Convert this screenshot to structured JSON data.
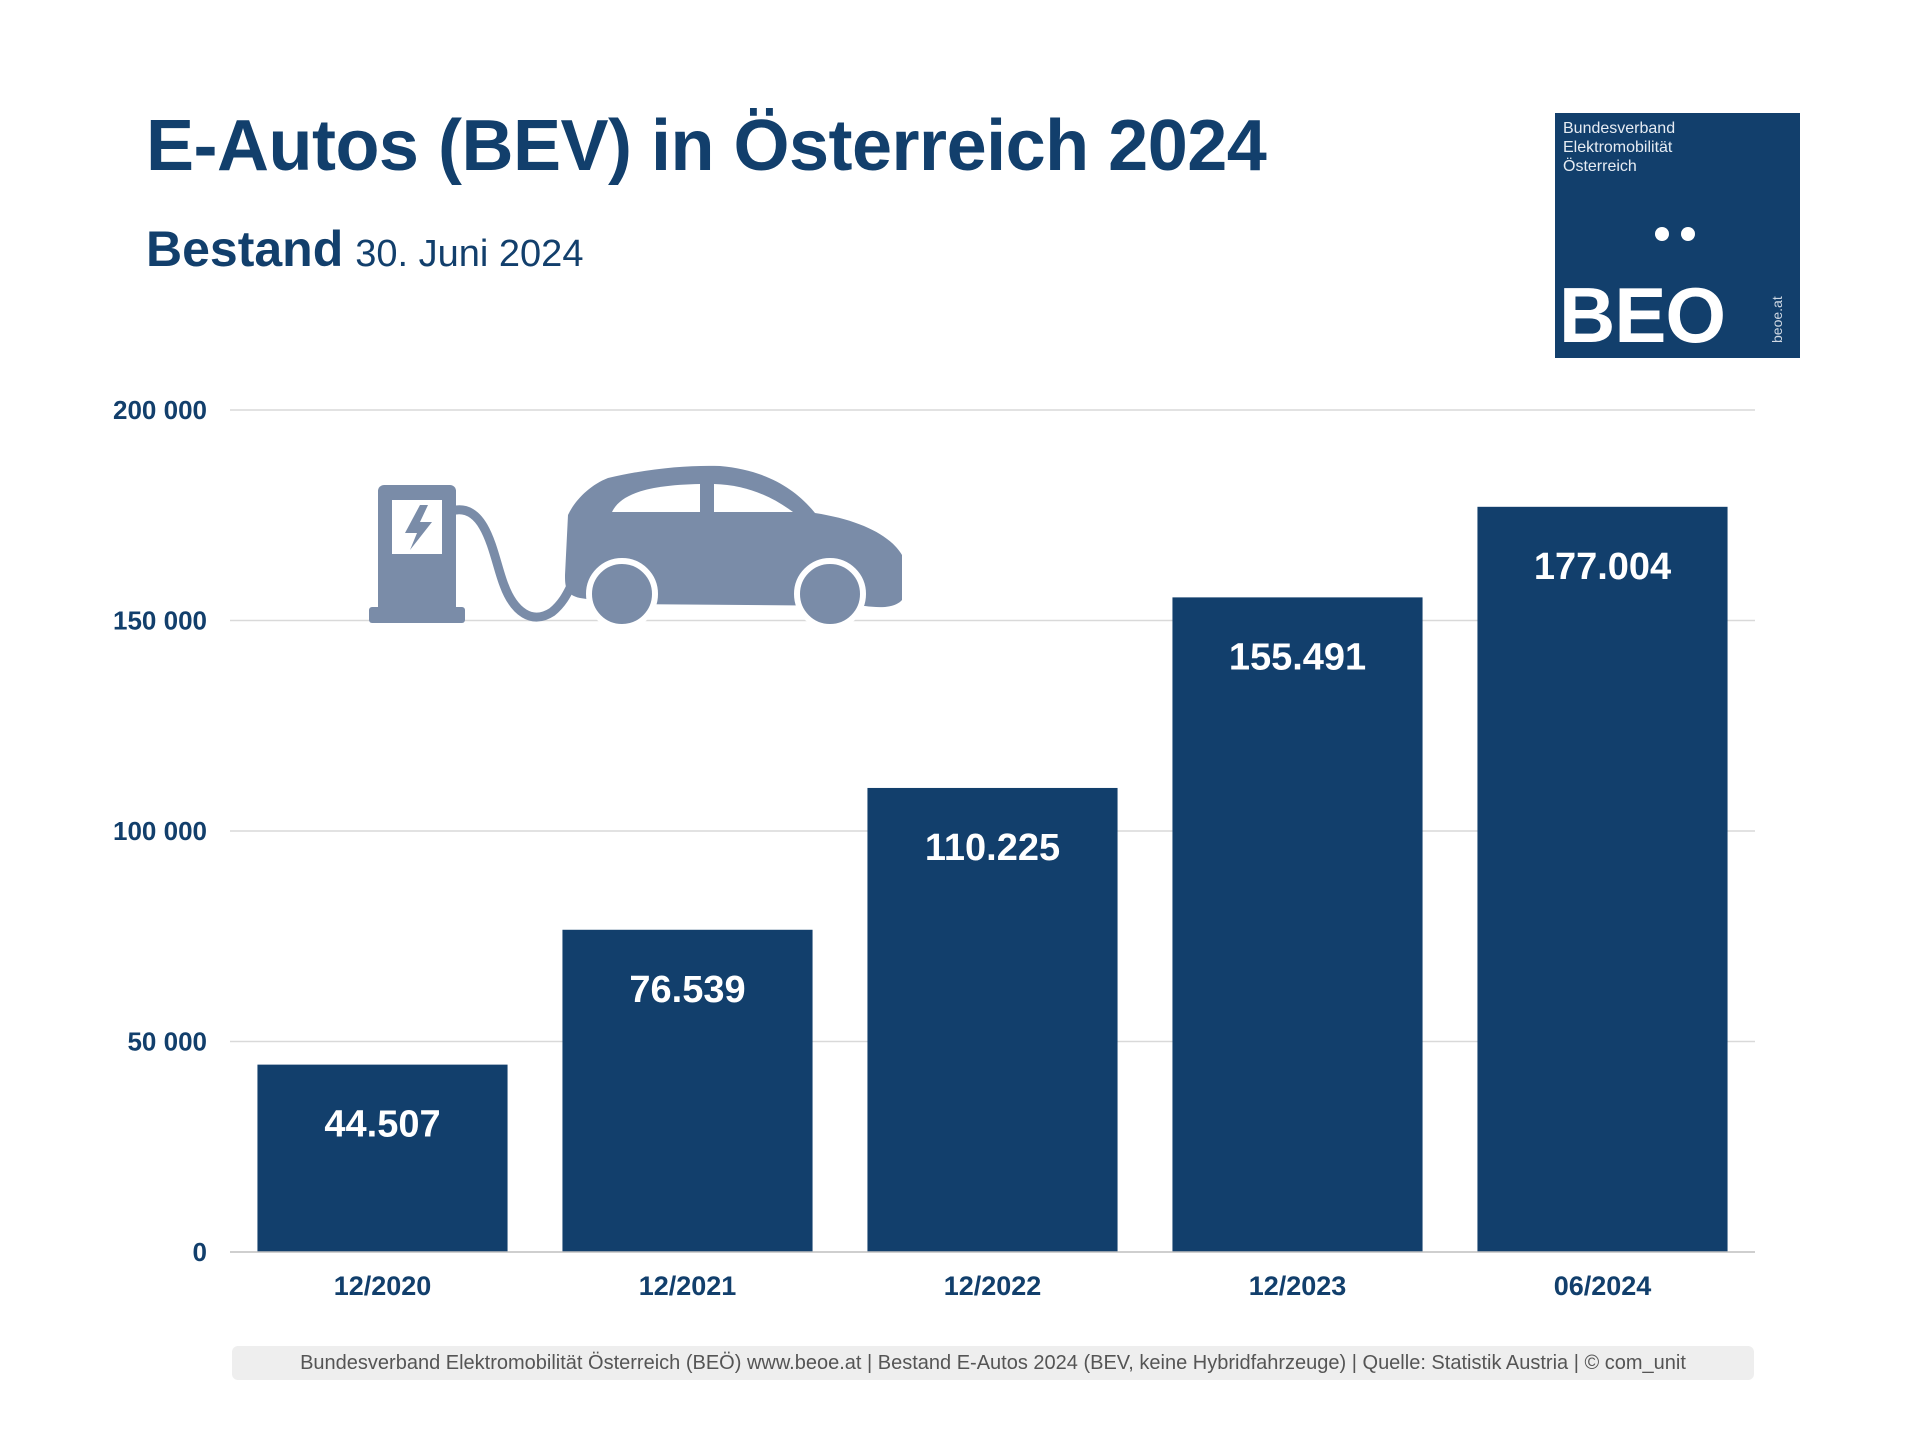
{
  "header": {
    "title": "E-Autos (BEV) in Österreich 2024",
    "subtitle_bold": "Bestand",
    "subtitle_date": "30. Juni 2024"
  },
  "logo": {
    "org_lines": [
      "Bundesverband",
      "Elektromobilität",
      "Österreich"
    ],
    "wordmark": "BEO",
    "url": "beoe.at",
    "color": "#123f6c"
  },
  "illustration": {
    "icons": [
      "charging-station-icon",
      "electric-car-icon"
    ],
    "color": "#7a8ca8"
  },
  "chart_data": {
    "type": "bar",
    "categories": [
      "12/2020",
      "12/2021",
      "12/2022",
      "12/2023",
      "06/2024"
    ],
    "values": [
      44507,
      76539,
      110225,
      155491,
      177004
    ],
    "value_labels": [
      "44.507",
      "76.539",
      "110.225",
      "155.491",
      "177.004"
    ],
    "ylim": [
      0,
      200000
    ],
    "yticks": [
      0,
      50000,
      100000,
      150000,
      200000
    ],
    "ytick_labels": [
      "0",
      "50 000",
      "100 000",
      "150 000",
      "200 000"
    ],
    "grid": true,
    "legend": "none",
    "bar_color": "#123f6c",
    "label_color": "#ffffff"
  },
  "footer": {
    "text": "Bundesverband Elektromobilität Österreich (BEÖ) www.beoe.at | Bestand E-Autos 2024 (BEV, keine Hybridfahrzeuge) | Quelle: Statistik Austria | © com_unit"
  }
}
